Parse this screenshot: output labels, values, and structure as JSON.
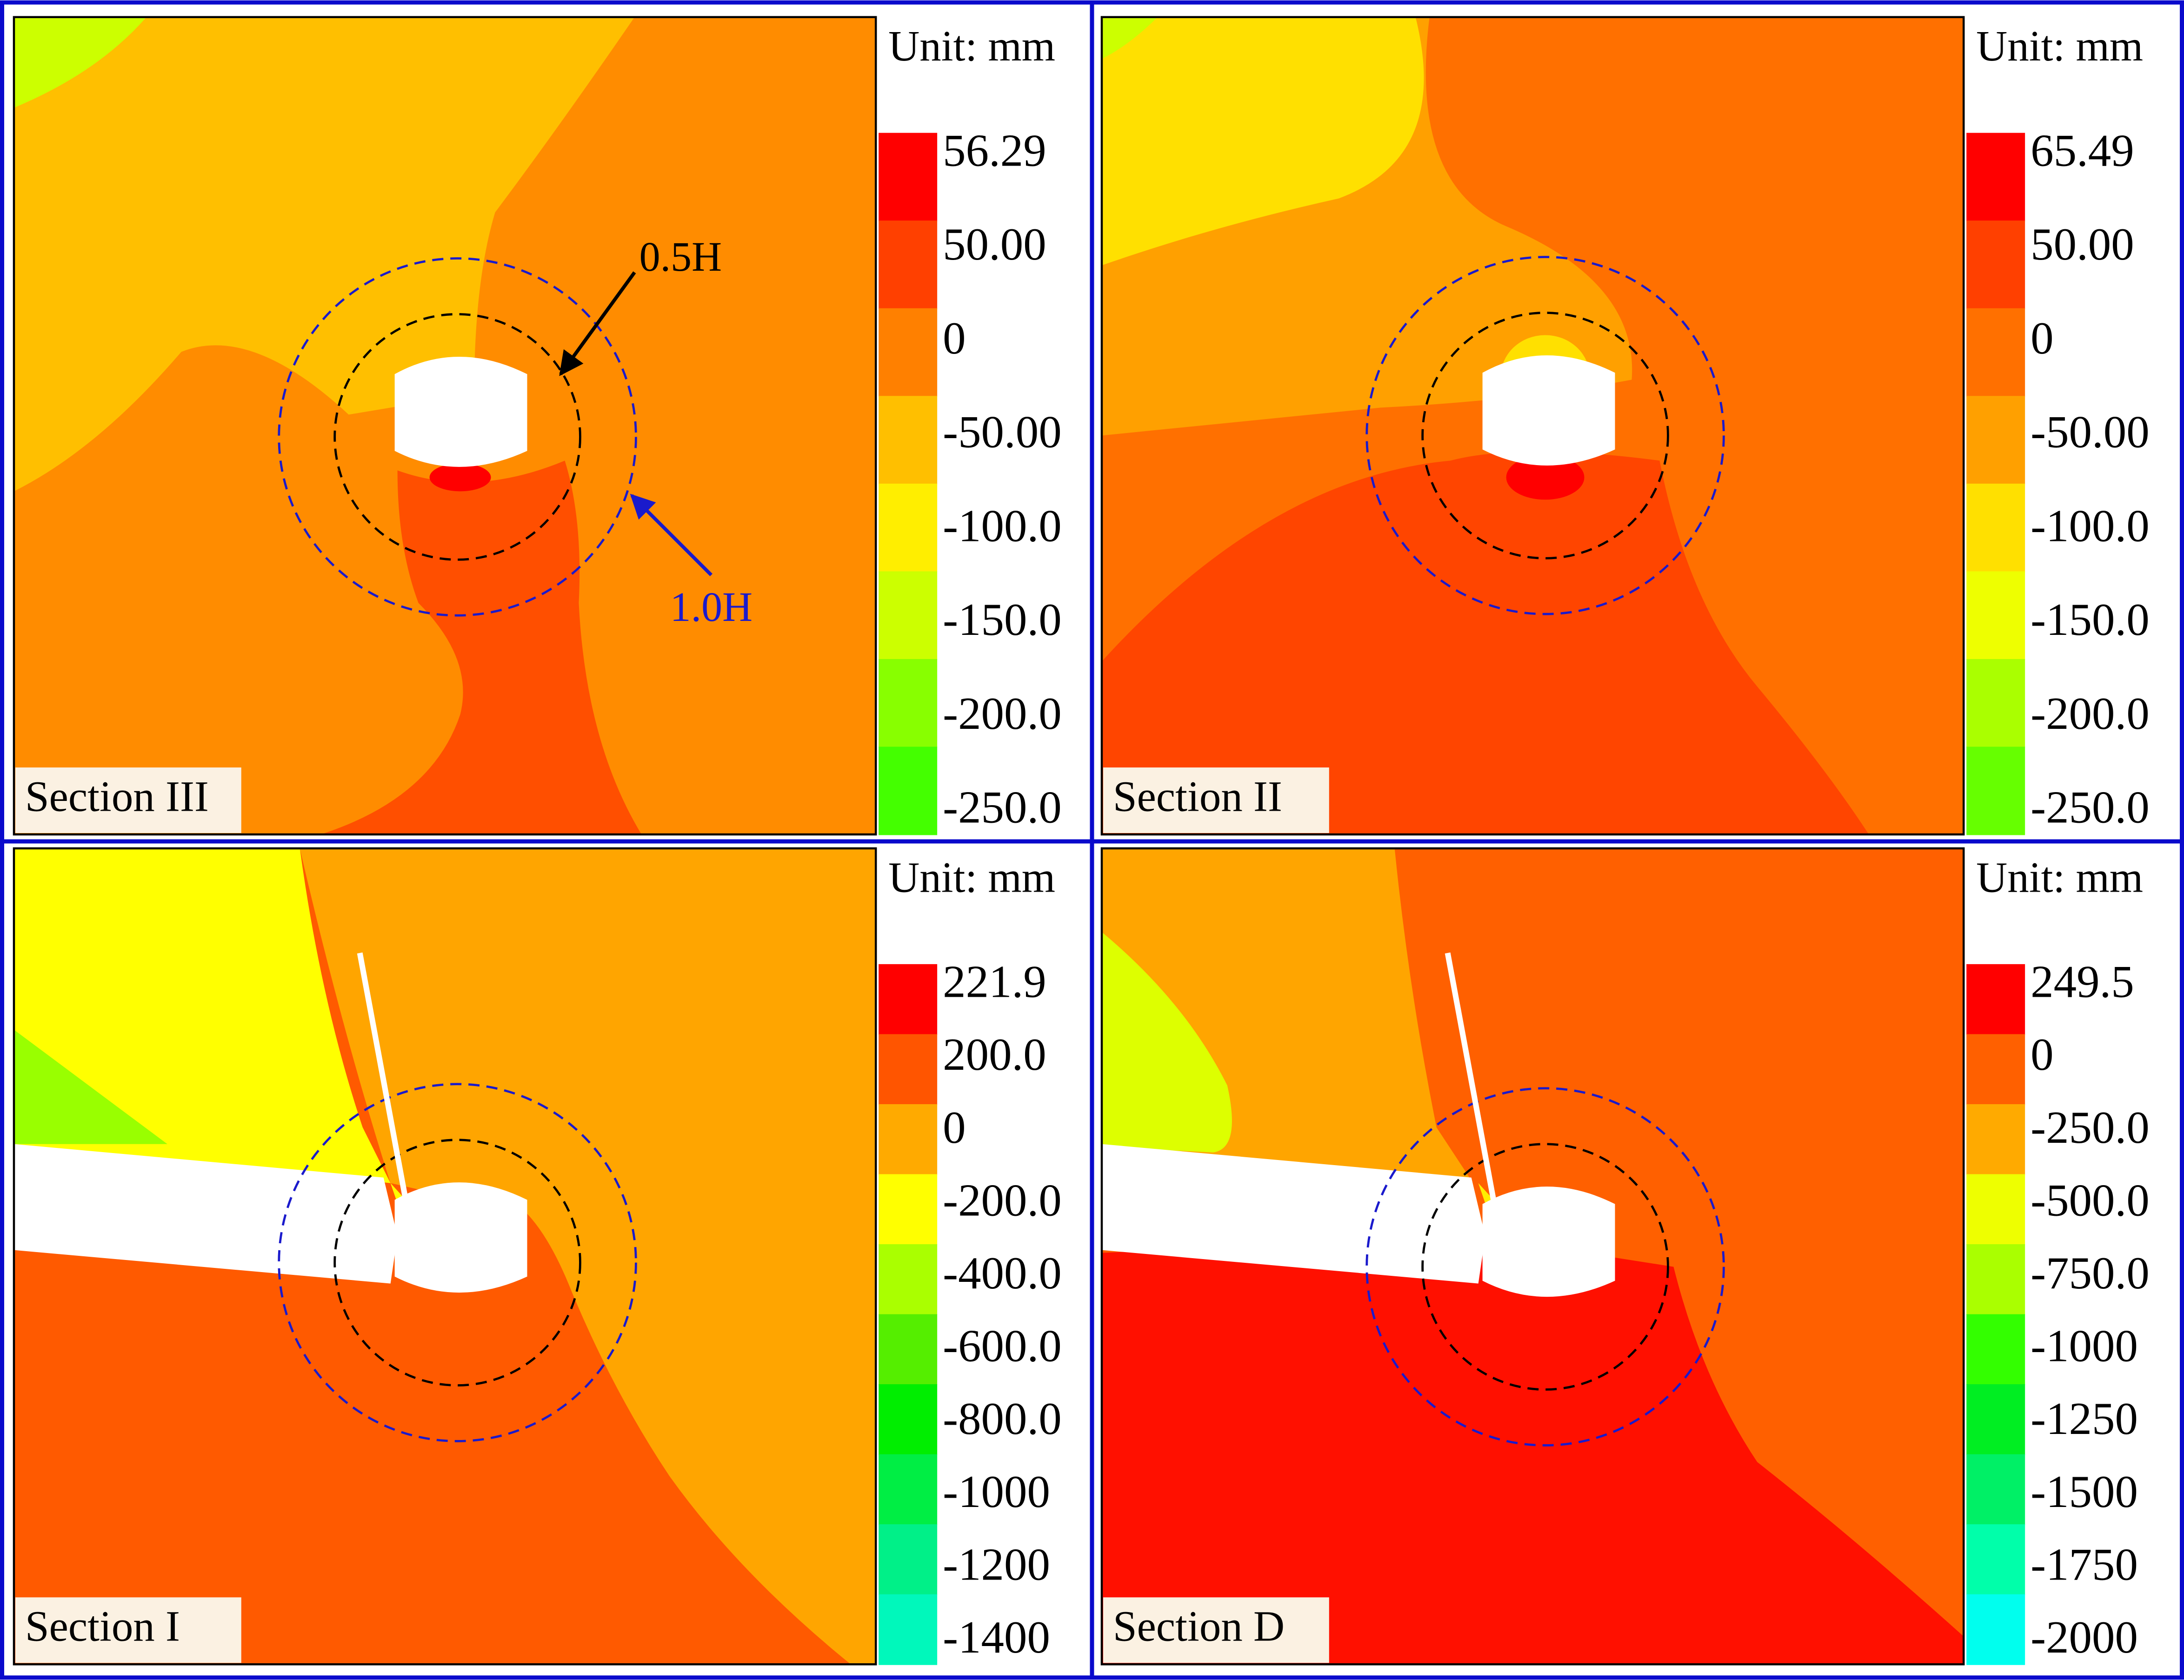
{
  "panels": [
    {
      "unit": "Unit: mm",
      "section": "Section III",
      "legend": {
        "labels": [
          "56.29",
          "50.00",
          "0",
          "-50.00",
          "-100.0",
          "-150.0",
          "-200.0",
          "-250.0"
        ],
        "colors": [
          "#ff0000",
          "#ff4000",
          "#ff8000",
          "#ffbf00",
          "#ffee00",
          "#ccff00",
          "#88ff00",
          "#44ff00"
        ]
      }
    },
    {
      "unit": "Unit: mm",
      "section": "Section II",
      "legend": {
        "labels": [
          "65.49",
          "50.00",
          "0",
          "-50.00",
          "-100.0",
          "-150.0",
          "-200.0",
          "-250.0"
        ],
        "colors": [
          "#ff0000",
          "#ff4000",
          "#ff7000",
          "#ffa000",
          "#ffe000",
          "#eeff00",
          "#aaff00",
          "#66ff00"
        ]
      }
    },
    {
      "unit": "Unit: mm",
      "section": "Section I",
      "legend": {
        "labels": [
          "221.9",
          "200.0",
          "0",
          "-200.0",
          "-400.0",
          "-600.0",
          "-800.0",
          "-1000",
          "-1200",
          "-1400"
        ],
        "colors": [
          "#ff0000",
          "#ff5500",
          "#ffaa00",
          "#ffff00",
          "#aaff00",
          "#55ee00",
          "#00ee00",
          "#00ee44",
          "#00f088",
          "#00f8bb"
        ]
      }
    },
    {
      "unit": "Unit: mm",
      "section": "Section D",
      "legend": {
        "labels": [
          "249.5",
          "0",
          "-250.0",
          "-500.0",
          "-750.0",
          "-1000",
          "-1250",
          "-1500",
          "-1750",
          "-2000"
        ],
        "colors": [
          "#ff0000",
          "#ff6000",
          "#ffaa00",
          "#eeff00",
          "#aaff00",
          "#33ff00",
          "#00ee22",
          "#00f066",
          "#00ffaa",
          "#00ffee"
        ]
      }
    }
  ],
  "annotations": {
    "inner": "0.5H",
    "outer": "1.0H"
  }
}
